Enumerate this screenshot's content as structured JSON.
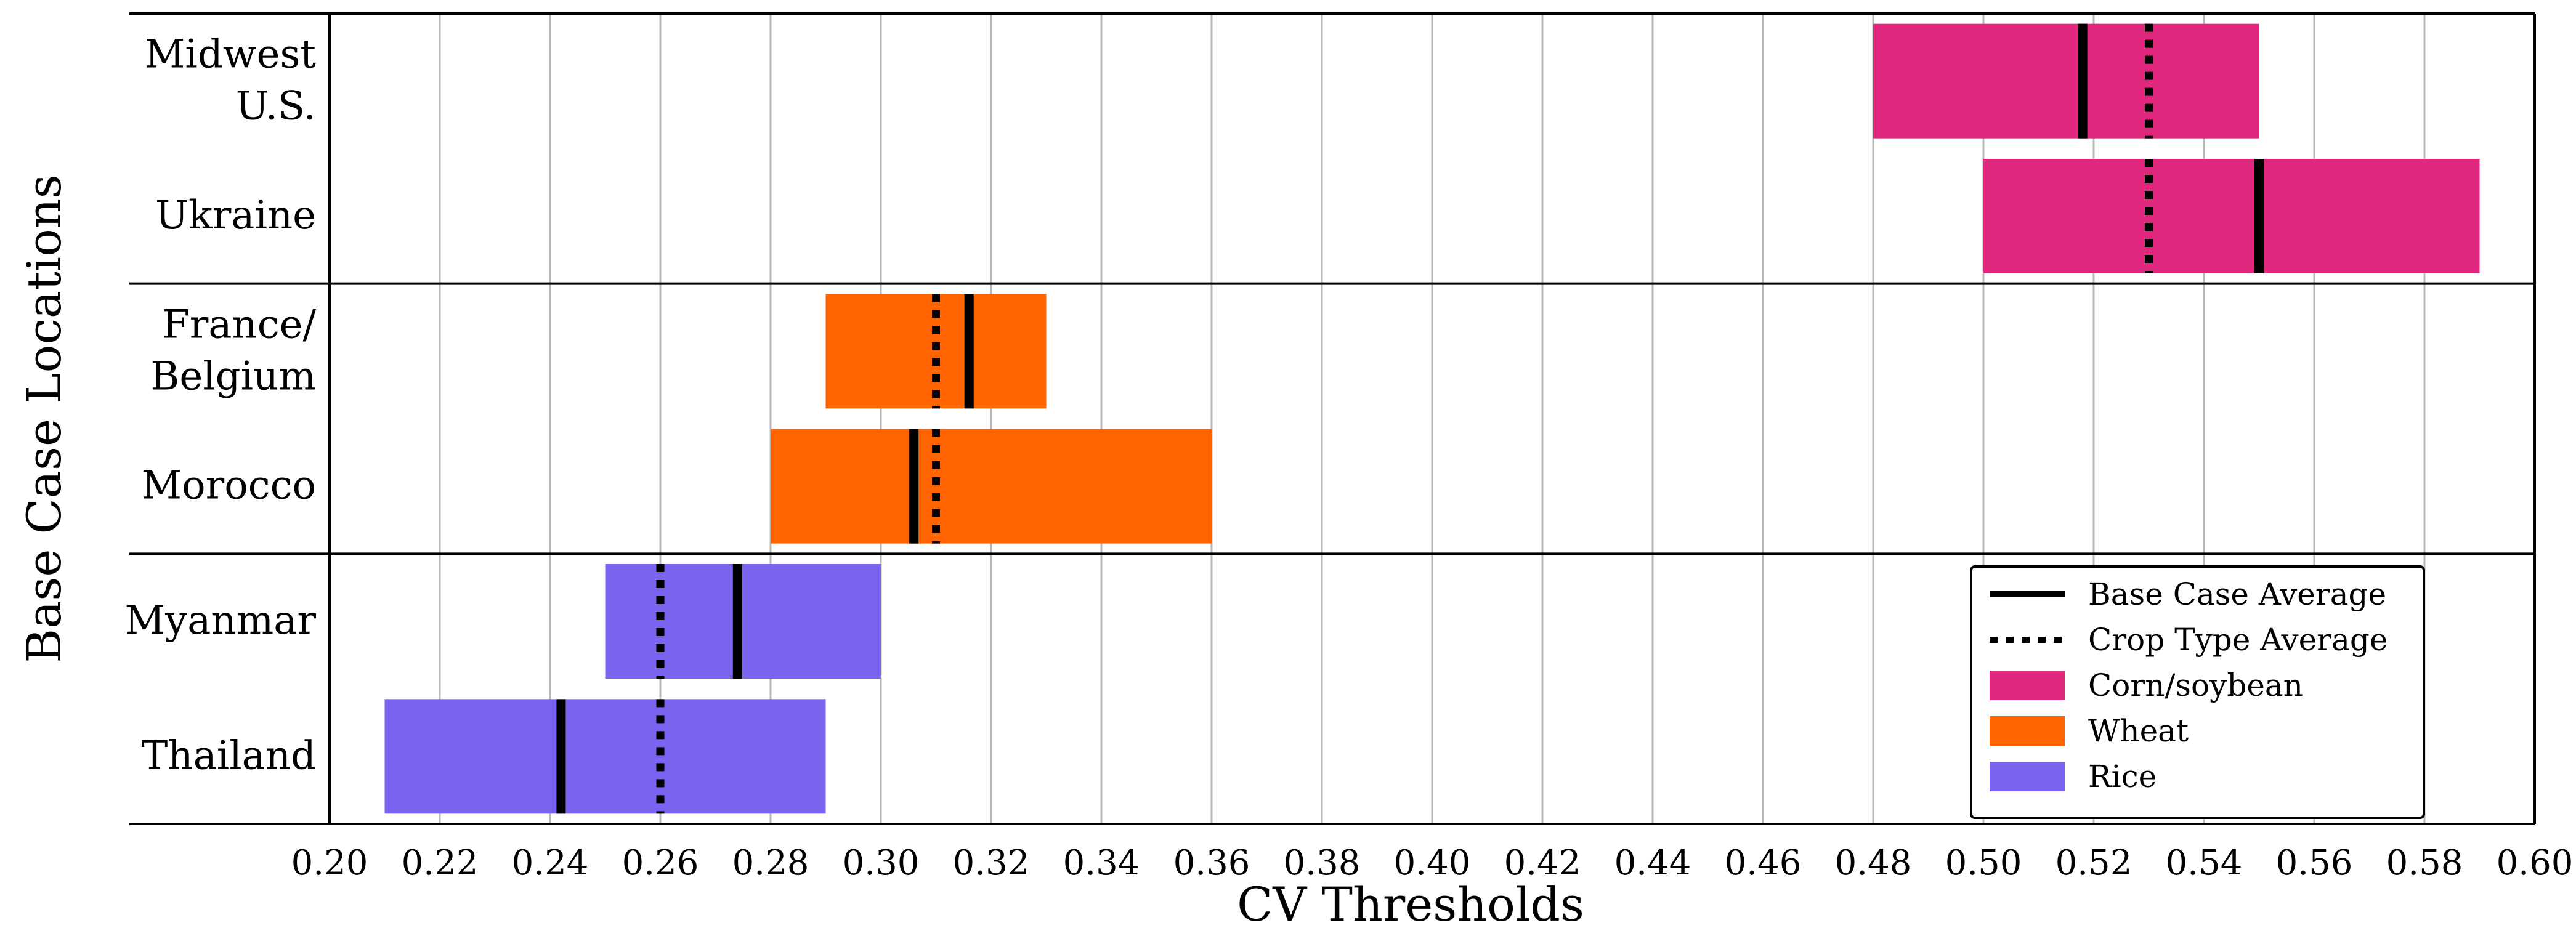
{
  "chart_data": {
    "type": "bar",
    "orientation": "horizontal",
    "title": "",
    "xlabel": "CV Thresholds",
    "ylabel": "Base Case Locations",
    "xlim": [
      0.2,
      0.6
    ],
    "xticks": [
      "0.20",
      "0.22",
      "0.24",
      "0.26",
      "0.28",
      "0.30",
      "0.32",
      "0.34",
      "0.36",
      "0.38",
      "0.40",
      "0.42",
      "0.44",
      "0.46",
      "0.48",
      "0.50",
      "0.52",
      "0.54",
      "0.56",
      "0.58",
      "0.60"
    ],
    "grid": "vertical",
    "legend_position": "lower-right",
    "groups": [
      {
        "crop": "Corn/soybean",
        "color": "#e0287f",
        "crop_average": 0.53,
        "locations": [
          {
            "label": [
              "Midwest",
              "U.S."
            ],
            "min": 0.48,
            "max": 0.55,
            "base_case_average": 0.518
          },
          {
            "label": [
              "Ukraine"
            ],
            "min": 0.5,
            "max": 0.59,
            "base_case_average": 0.55
          }
        ]
      },
      {
        "crop": "Wheat",
        "color": "#ff6401",
        "crop_average": 0.31,
        "locations": [
          {
            "label": [
              "France/",
              "Belgium"
            ],
            "min": 0.29,
            "max": 0.33,
            "base_case_average": 0.316
          },
          {
            "label": [
              "Morocco"
            ],
            "min": 0.28,
            "max": 0.36,
            "base_case_average": 0.306
          }
        ]
      },
      {
        "crop": "Rice",
        "color": "#7b63ef",
        "crop_average": 0.26,
        "locations": [
          {
            "label": [
              "Myanmar"
            ],
            "min": 0.25,
            "max": 0.3,
            "base_case_average": 0.274
          },
          {
            "label": [
              "Thailand"
            ],
            "min": 0.21,
            "max": 0.29,
            "base_case_average": 0.242
          }
        ]
      }
    ],
    "legend": [
      {
        "label": "Base Case Average",
        "kind": "solid-line"
      },
      {
        "label": "Crop Type Average",
        "kind": "dotted-line"
      },
      {
        "label": "Corn/soybean",
        "kind": "patch",
        "color": "#e0287f"
      },
      {
        "label": "Wheat",
        "kind": "patch",
        "color": "#ff6401"
      },
      {
        "label": "Rice",
        "kind": "patch",
        "color": "#7b63ef"
      }
    ]
  }
}
